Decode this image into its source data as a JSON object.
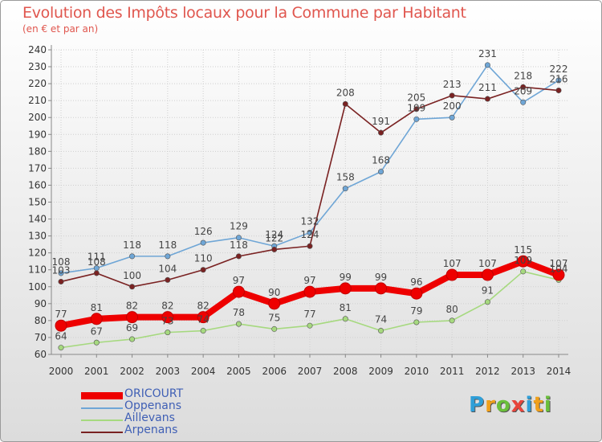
{
  "header": {
    "title": "Evolution des Impôts locaux pour la Commune par Habitant",
    "subtitle": "(en € et par an)"
  },
  "logo": {
    "text": "Proxiti"
  },
  "chart_data": {
    "type": "line",
    "title": "Evolution des Impôts locaux pour la Commune par Habitant",
    "subtitle": "(en € et par an)",
    "xlabel": "",
    "ylabel": "",
    "ylim": [
      60,
      240
    ],
    "yticks": [
      60,
      70,
      80,
      90,
      100,
      110,
      120,
      130,
      140,
      150,
      160,
      170,
      180,
      190,
      200,
      210,
      220,
      230,
      240
    ],
    "x": [
      "2000",
      "2001",
      "2002",
      "2003",
      "2004",
      "2005",
      "2006",
      "2007",
      "2008",
      "2009",
      "2010",
      "2011",
      "2012",
      "2013",
      "2014"
    ],
    "grid": true,
    "legend_position": "bottom-left",
    "series": [
      {
        "name": "ORICOURT",
        "color": "#ee0000",
        "values": [
          77,
          81,
          82,
          82,
          82,
          97,
          90,
          97,
          99,
          99,
          96,
          107,
          107,
          115,
          107
        ]
      },
      {
        "name": "Oppenans",
        "color": "#6fa6d6",
        "values": [
          108,
          111,
          118,
          118,
          126,
          129,
          124,
          132,
          158,
          168,
          199,
          200,
          231,
          209,
          222
        ]
      },
      {
        "name": "Aillevans",
        "color": "#a6d97f",
        "values": [
          64,
          67,
          69,
          73,
          74,
          78,
          75,
          77,
          81,
          74,
          79,
          80,
          91,
          109,
          104
        ]
      },
      {
        "name": "Arpenans",
        "color": "#7a2222",
        "values": [
          103,
          108,
          100,
          104,
          110,
          118,
          122,
          124,
          208,
          191,
          205,
          213,
          211,
          218,
          216
        ]
      }
    ]
  }
}
